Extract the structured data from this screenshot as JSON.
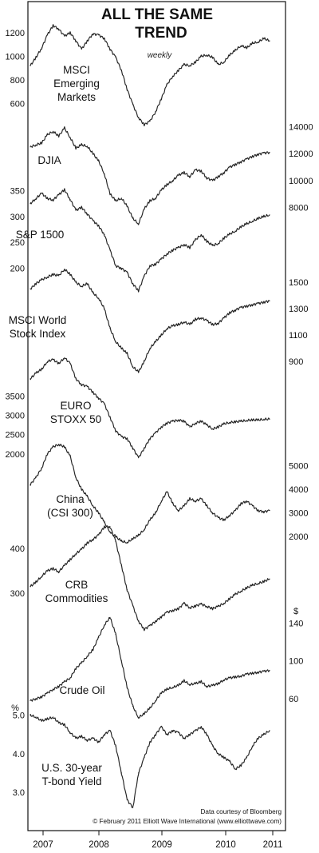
{
  "chart_data": {
    "type": "line",
    "title_line1": "ALL THE SAME",
    "title_line2": "TREND",
    "subtitle": "weekly",
    "credit_source": "Data courtesy of Bloomberg",
    "credit_copyright": "© February 2011 Elliott Wave International (www.elliottwave.com)",
    "x_ticks": [
      "2007",
      "2008",
      "2009",
      "2010",
      "2011"
    ],
    "series": [
      {
        "label_lines": [
          "MSCI",
          "Emerging",
          "Markets"
        ],
        "axis_side": "left",
        "axis_unit": "",
        "ticks": [
          {
            "v": 600,
            "t": "600"
          },
          {
            "v": 800,
            "t": "800"
          },
          {
            "v": 1000,
            "t": "1000"
          },
          {
            "v": 1200,
            "t": "1200"
          }
        ],
        "values": [
          920,
          990,
          1070,
          1180,
          1260,
          1230,
          1170,
          1200,
          1130,
          1060,
          1130,
          1190,
          1180,
          1150,
          1060,
          990,
          880,
          720,
          590,
          480,
          420,
          450,
          530,
          640,
          760,
          830,
          880,
          930,
          920,
          950,
          1000,
          1010,
          990,
          930,
          950,
          1010,
          1050,
          1090,
          1070,
          1110,
          1120,
          1150,
          1130
        ]
      },
      {
        "label_lines": [
          "DJIA"
        ],
        "axis_side": "right",
        "axis_unit": "",
        "ticks": [
          {
            "v": 8000,
            "t": "8000"
          },
          {
            "v": 10000,
            "t": "10000"
          },
          {
            "v": 12000,
            "t": "12000"
          },
          {
            "v": 14000,
            "t": "14000"
          }
        ],
        "values": [
          12500,
          12650,
          12800,
          13400,
          13650,
          13300,
          13900,
          13200,
          12400,
          12650,
          12550,
          12000,
          11450,
          10500,
          9000,
          8500,
          8700,
          8100,
          7200,
          6800,
          7900,
          8500,
          8700,
          9300,
          9700,
          10000,
          10400,
          10600,
          10300,
          10800,
          10700,
          10200,
          10000,
          10300,
          10600,
          11000,
          11200,
          11400,
          11600,
          11800,
          11950,
          12050,
          12100
        ]
      },
      {
        "label_lines": [
          "S&P 1500"
        ],
        "axis_side": "left",
        "axis_unit": "",
        "ticks": [
          {
            "v": 200,
            "t": "200"
          },
          {
            "v": 250,
            "t": "250"
          },
          {
            "v": 300,
            "t": "300"
          },
          {
            "v": 350,
            "t": "350"
          }
        ],
        "values": [
          325,
          335,
          345,
          335,
          332,
          342,
          352,
          333,
          312,
          318,
          305,
          292,
          282,
          265,
          235,
          205,
          200,
          192,
          170,
          157,
          185,
          205,
          208,
          218,
          228,
          235,
          240,
          246,
          240,
          255,
          265,
          252,
          244,
          248,
          258,
          266,
          272,
          280,
          286,
          291,
          296,
          300,
          303
        ]
      },
      {
        "label_lines": [
          "MSCI World",
          "Stock Index"
        ],
        "axis_side": "right",
        "axis_unit": "",
        "ticks": [
          {
            "v": 900,
            "t": "900"
          },
          {
            "v": 1100,
            "t": "1100"
          },
          {
            "v": 1300,
            "t": "1300"
          },
          {
            "v": 1500,
            "t": "1500"
          }
        ],
        "values": [
          1450,
          1490,
          1520,
          1540,
          1560,
          1550,
          1600,
          1560,
          1500,
          1470,
          1490,
          1420,
          1380,
          1300,
          1150,
          1050,
          1000,
          960,
          860,
          820,
          900,
          1000,
          1050,
          1100,
          1150,
          1170,
          1180,
          1200,
          1180,
          1220,
          1230,
          1210,
          1180,
          1190,
          1230,
          1270,
          1290,
          1310,
          1320,
          1330,
          1340,
          1350,
          1360
        ]
      },
      {
        "label_lines": [
          "EURO",
          "STOXX 50"
        ],
        "axis_side": "left",
        "axis_unit": "",
        "ticks": [
          {
            "v": 2000,
            "t": "2000"
          },
          {
            "v": 2500,
            "t": "2500"
          },
          {
            "v": 3000,
            "t": "3000"
          },
          {
            "v": 3500,
            "t": "3500"
          }
        ],
        "values": [
          3950,
          4100,
          4200,
          4400,
          4450,
          4350,
          4500,
          4350,
          3950,
          3800,
          3750,
          3600,
          3450,
          3300,
          2950,
          2600,
          2450,
          2400,
          2150,
          1900,
          2150,
          2400,
          2550,
          2700,
          2800,
          2850,
          2880,
          2850,
          2700,
          2800,
          2850,
          2750,
          2650,
          2700,
          2780,
          2820,
          2830,
          2850,
          2870,
          2880,
          2880,
          2900,
          2900
        ]
      },
      {
        "label_lines": [
          "China",
          "(CSI 300)"
        ],
        "axis_side": "right",
        "axis_unit": "",
        "ticks": [
          {
            "v": 2000,
            "t": "2000"
          },
          {
            "v": 3000,
            "t": "3000"
          },
          {
            "v": 4000,
            "t": "4000"
          },
          {
            "v": 5000,
            "t": "5000"
          }
        ],
        "values": [
          4200,
          4500,
          4900,
          5500,
          5800,
          5900,
          5800,
          5400,
          4500,
          4000,
          3700,
          3300,
          3000,
          2600,
          2200,
          2000,
          1800,
          1750,
          1900,
          2050,
          2300,
          2700,
          3000,
          3500,
          3900,
          3400,
          3100,
          3300,
          3600,
          3500,
          3600,
          3300,
          3000,
          2800,
          2700,
          2900,
          3100,
          3400,
          3500,
          3300,
          3100,
          3050,
          3100
        ]
      },
      {
        "label_lines": [
          "CRB",
          "Commodities"
        ],
        "axis_side": "left",
        "axis_unit": "",
        "ticks": [
          {
            "v": 300,
            "t": "300"
          },
          {
            "v": 400,
            "t": "400"
          }
        ],
        "values": [
          315,
          325,
          338,
          350,
          355,
          348,
          362,
          375,
          388,
          398,
          412,
          420,
          430,
          448,
          448,
          415,
          362,
          308,
          272,
          238,
          220,
          228,
          238,
          248,
          258,
          262,
          266,
          278,
          268,
          272,
          276,
          271,
          266,
          271,
          278,
          288,
          298,
          305,
          312,
          318,
          322,
          326,
          332
        ]
      },
      {
        "label_lines": [
          "Crude Oil"
        ],
        "axis_side": "right",
        "axis_unit": "$",
        "ticks": [
          {
            "v": 60,
            "t": "60"
          },
          {
            "v": 100,
            "t": "100"
          },
          {
            "v": 140,
            "t": "140"
          }
        ],
        "values": [
          58,
          60,
          62,
          66,
          70,
          73,
          78,
          82,
          92,
          98,
          105,
          112,
          125,
          138,
          146,
          128,
          100,
          72,
          52,
          40,
          44,
          50,
          58,
          66,
          70,
          72,
          74,
          79,
          75,
          76,
          78,
          73,
          74,
          76,
          80,
          82,
          83,
          84,
          86,
          87,
          88,
          89,
          90
        ]
      },
      {
        "label_lines": [
          "U.S. 30-year",
          "T-bond Yield"
        ],
        "axis_side": "left",
        "axis_unit": "%",
        "ticks": [
          {
            "v": 3.0,
            "t": "3.0"
          },
          {
            "v": 4.0,
            "t": "4.0"
          },
          {
            "v": 5.0,
            "t": "5.0"
          }
        ],
        "values": [
          5.0,
          4.95,
          4.85,
          4.9,
          4.95,
          4.8,
          4.75,
          4.55,
          4.4,
          4.45,
          4.35,
          4.4,
          4.3,
          4.5,
          4.6,
          4.2,
          3.5,
          2.8,
          2.6,
          3.5,
          3.9,
          4.3,
          4.5,
          4.7,
          4.5,
          4.6,
          4.55,
          4.4,
          4.5,
          4.6,
          4.7,
          4.5,
          4.2,
          4.0,
          3.9,
          3.8,
          3.6,
          3.7,
          3.9,
          4.2,
          4.4,
          4.5,
          4.6
        ]
      }
    ]
  }
}
